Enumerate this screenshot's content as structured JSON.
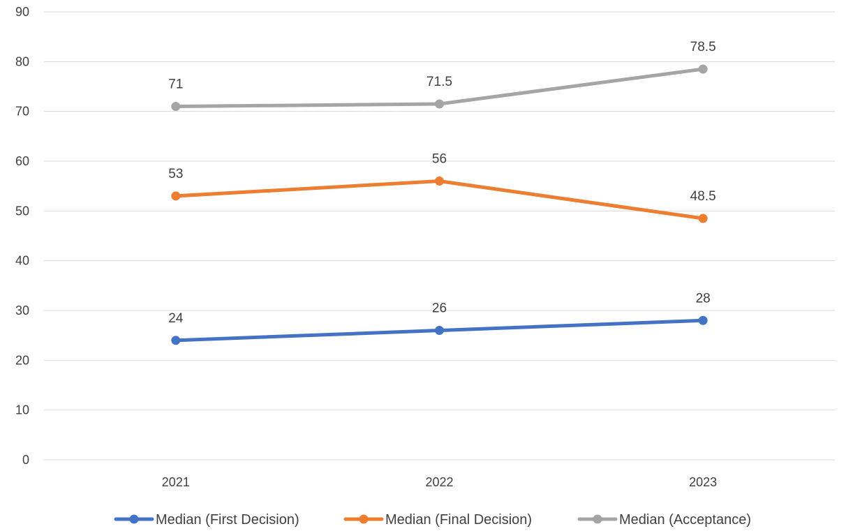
{
  "chart_data": {
    "type": "line",
    "title": "",
    "xlabel": "",
    "ylabel": "",
    "categories": [
      "2021",
      "2022",
      "2023"
    ],
    "ylim": [
      0,
      90
    ],
    "yticks": [
      0,
      10,
      20,
      30,
      40,
      50,
      60,
      70,
      80,
      90
    ],
    "grid": true,
    "legend_position": "bottom",
    "series": [
      {
        "name": "Median (First Decision)",
        "values": [
          24,
          26,
          28
        ],
        "color": "#4472C4",
        "data_labels": [
          "24",
          "26",
          "28"
        ]
      },
      {
        "name": "Median (Final Decision)",
        "values": [
          53,
          56,
          48.5
        ],
        "color": "#ED7D31",
        "data_labels": [
          "53",
          "56",
          "48.5"
        ]
      },
      {
        "name": "Median (Acceptance)",
        "values": [
          71,
          71.5,
          78.5
        ],
        "color": "#A5A5A5",
        "data_labels": [
          "71",
          "71.5",
          "78.5"
        ]
      }
    ],
    "grid_color": "#D9D9D9",
    "text_color": "#404040"
  }
}
